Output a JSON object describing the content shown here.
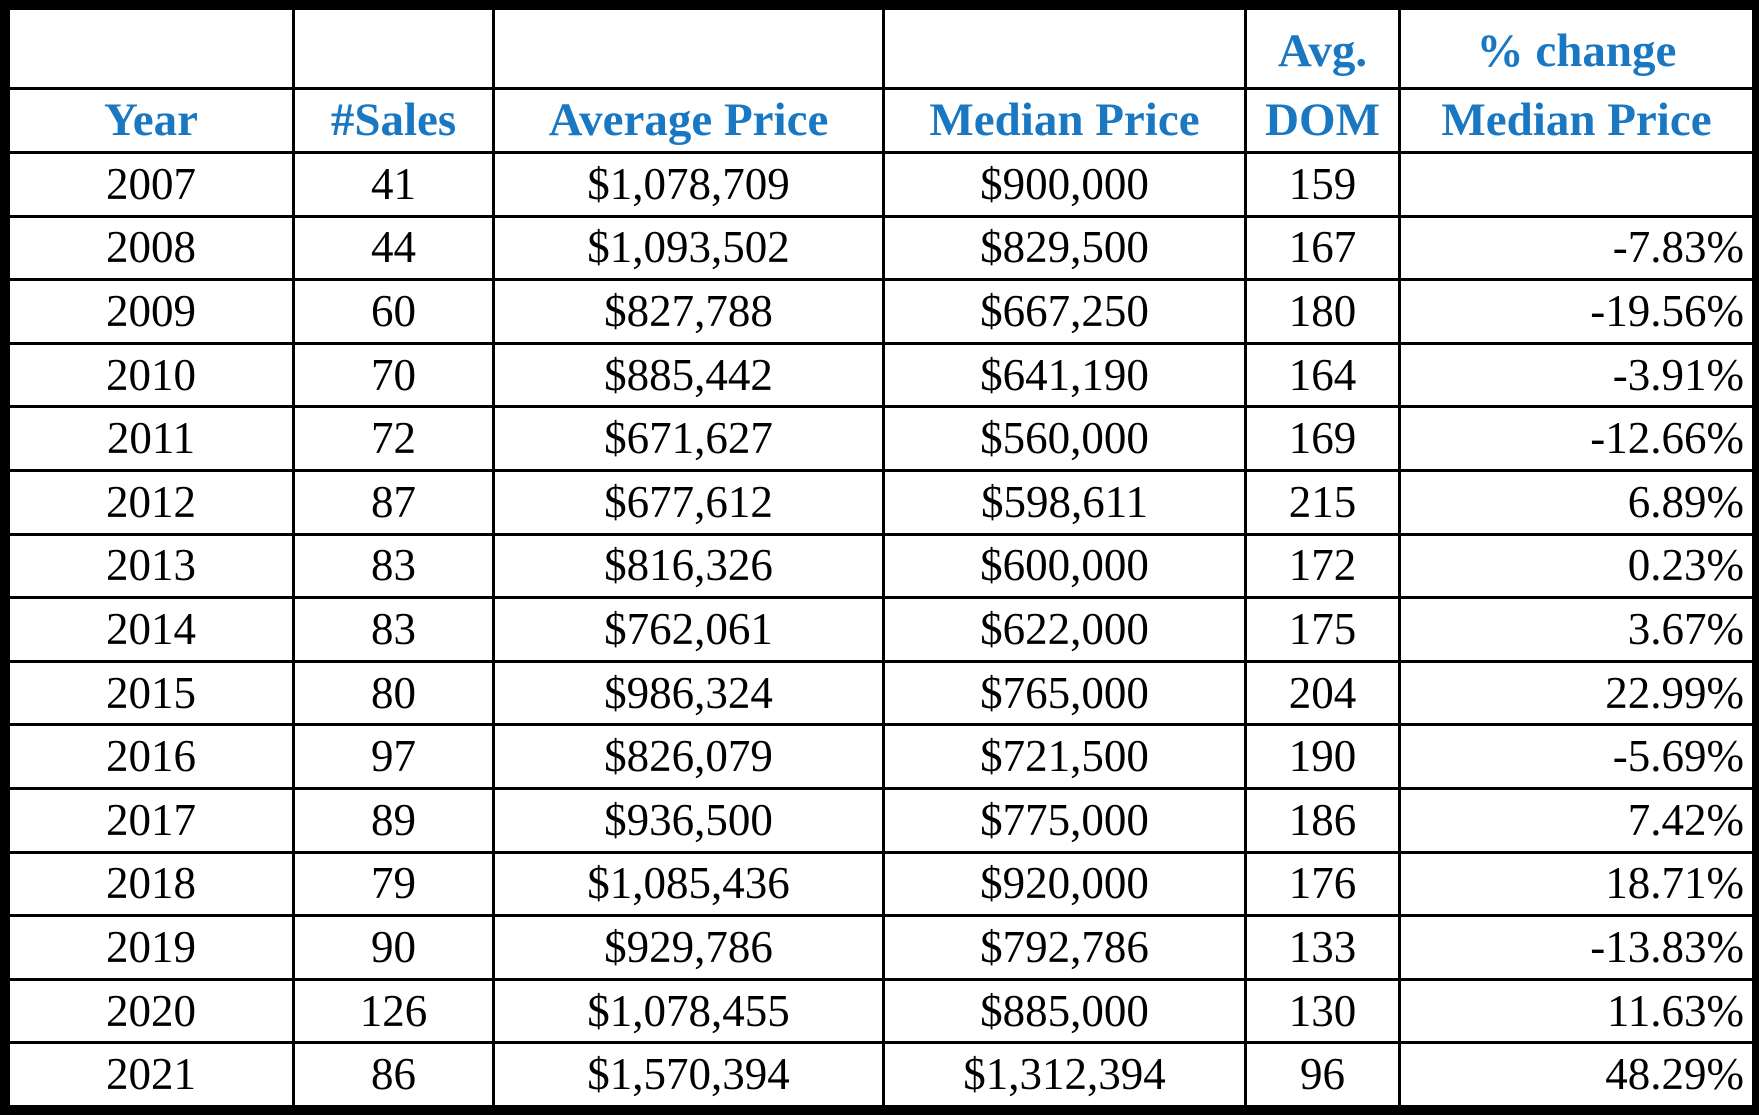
{
  "table": {
    "headers_row1": [
      "",
      "",
      "",
      "",
      "Avg.",
      "% change"
    ],
    "headers_row2": [
      "Year",
      "#Sales",
      "Average Price",
      "Median Price",
      "DOM",
      "Median Price"
    ],
    "rows": [
      {
        "year": "2007",
        "sales": "41",
        "avg_price": "$1,078,709",
        "median_price": "$900,000",
        "dom": "159",
        "pct_change": ""
      },
      {
        "year": "2008",
        "sales": "44",
        "avg_price": "$1,093,502",
        "median_price": "$829,500",
        "dom": "167",
        "pct_change": "-7.83%"
      },
      {
        "year": "2009",
        "sales": "60",
        "avg_price": "$827,788",
        "median_price": "$667,250",
        "dom": "180",
        "pct_change": "-19.56%"
      },
      {
        "year": "2010",
        "sales": "70",
        "avg_price": "$885,442",
        "median_price": "$641,190",
        "dom": "164",
        "pct_change": "-3.91%"
      },
      {
        "year": "2011",
        "sales": "72",
        "avg_price": "$671,627",
        "median_price": "$560,000",
        "dom": "169",
        "pct_change": "-12.66%"
      },
      {
        "year": "2012",
        "sales": "87",
        "avg_price": "$677,612",
        "median_price": "$598,611",
        "dom": "215",
        "pct_change": "6.89%"
      },
      {
        "year": "2013",
        "sales": "83",
        "avg_price": "$816,326",
        "median_price": "$600,000",
        "dom": "172",
        "pct_change": "0.23%"
      },
      {
        "year": "2014",
        "sales": "83",
        "avg_price": "$762,061",
        "median_price": "$622,000",
        "dom": "175",
        "pct_change": "3.67%"
      },
      {
        "year": "2015",
        "sales": "80",
        "avg_price": "$986,324",
        "median_price": "$765,000",
        "dom": "204",
        "pct_change": "22.99%"
      },
      {
        "year": "2016",
        "sales": "97",
        "avg_price": "$826,079",
        "median_price": "$721,500",
        "dom": "190",
        "pct_change": "-5.69%"
      },
      {
        "year": "2017",
        "sales": "89",
        "avg_price": "$936,500",
        "median_price": "$775,000",
        "dom": "186",
        "pct_change": "7.42%"
      },
      {
        "year": "2018",
        "sales": "79",
        "avg_price": "$1,085,436",
        "median_price": "$920,000",
        "dom": "176",
        "pct_change": "18.71%"
      },
      {
        "year": "2019",
        "sales": "90",
        "avg_price": "$929,786",
        "median_price": "$792,786",
        "dom": "133",
        "pct_change": "-13.83%"
      },
      {
        "year": "2020",
        "sales": "126",
        "avg_price": "$1,078,455",
        "median_price": "$885,000",
        "dom": "130",
        "pct_change": "11.63%"
      },
      {
        "year": "2021",
        "sales": "86",
        "avg_price": "$1,570,394",
        "median_price": "$1,312,394",
        "dom": "96",
        "pct_change": "48.29%"
      }
    ]
  },
  "colors": {
    "header_text": "#1a78c2",
    "body_text": "#000000",
    "grid": "#000000"
  }
}
